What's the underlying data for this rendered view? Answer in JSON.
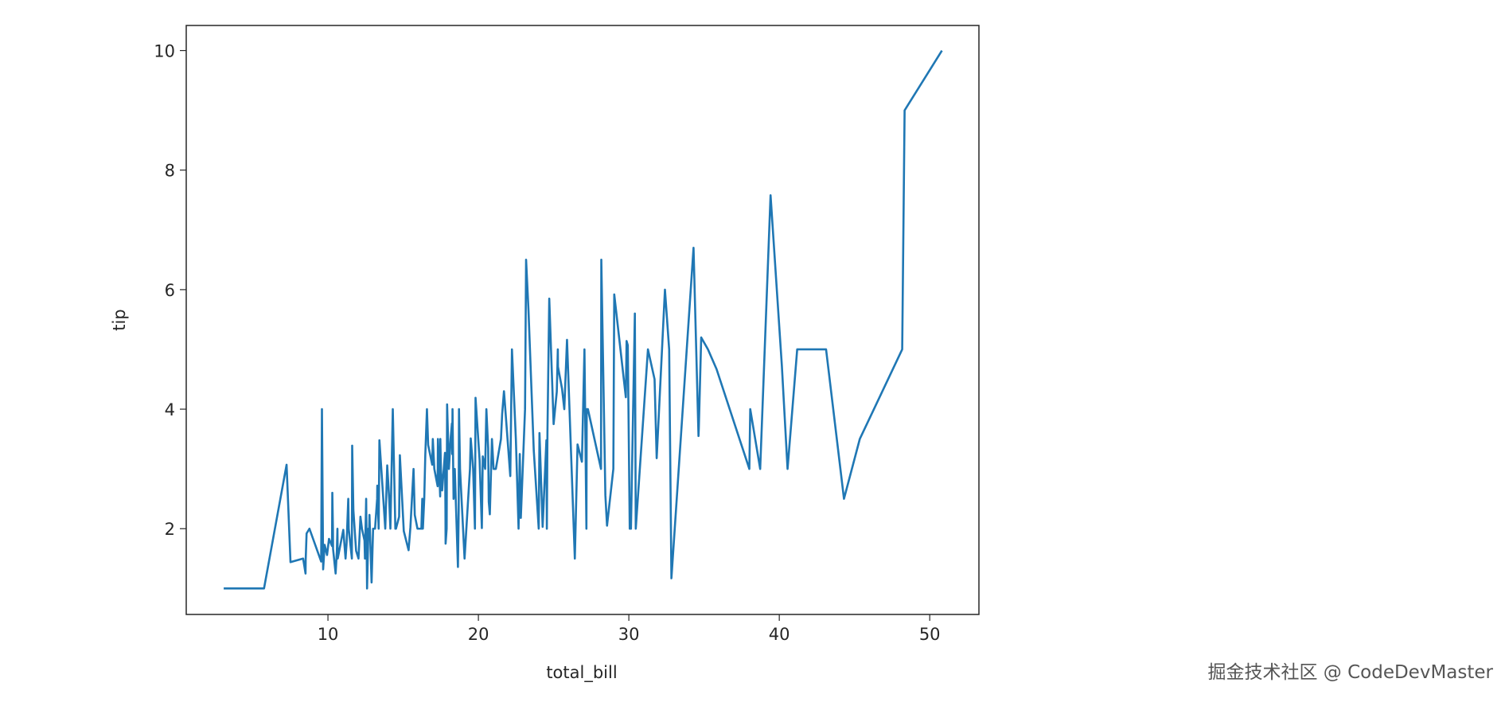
{
  "chart_data": {
    "type": "line",
    "xlabel": "total_bill",
    "ylabel": "tip",
    "x": [
      3.07,
      5.75,
      7.25,
      7.51,
      8.35,
      8.51,
      8.52,
      8.58,
      8.77,
      9.55,
      9.6,
      9.68,
      9.78,
      9.94,
      10.07,
      10.27,
      10.29,
      10.33,
      10.34,
      10.51,
      10.59,
      10.63,
      10.65,
      11.02,
      11.17,
      11.24,
      11.35,
      11.38,
      11.59,
      11.61,
      11.69,
      11.87,
      12.03,
      12.16,
      12.26,
      12.43,
      12.46,
      12.54,
      12.6,
      12.69,
      12.74,
      12.76,
      12.9,
      13.0,
      13.03,
      13.13,
      13.27,
      13.28,
      13.37,
      13.42,
      13.81,
      13.94,
      14.07,
      14.15,
      14.31,
      14.48,
      14.52,
      14.73,
      14.78,
      15.04,
      15.36,
      15.48,
      15.69,
      15.77,
      15.95,
      16.0,
      16.21,
      16.27,
      16.31,
      16.4,
      16.47,
      16.58,
      16.66,
      16.93,
      16.97,
      17.07,
      17.29,
      17.31,
      17.46,
      17.47,
      17.51,
      17.59,
      17.78,
      17.81,
      17.82,
      17.89,
      17.92,
      18.04,
      18.15,
      18.24,
      18.26,
      18.28,
      18.29,
      18.35,
      18.43,
      18.64,
      18.69,
      18.71,
      18.78,
      19.08,
      19.44,
      19.49,
      19.65,
      19.77,
      19.81,
      20.08,
      20.23,
      20.27,
      20.29,
      20.45,
      20.53,
      20.65,
      20.69,
      20.76,
      20.9,
      21.01,
      21.16,
      21.5,
      21.58,
      21.7,
      22.12,
      22.23,
      22.49,
      22.67,
      22.75,
      22.82,
      23.1,
      23.17,
      23.33,
      23.68,
      24.01,
      24.06,
      24.27,
      24.52,
      24.55,
      24.59,
      24.71,
      25.0,
      25.21,
      25.28,
      25.29,
      25.56,
      25.71,
      25.89,
      26.41,
      26.59,
      26.86,
      26.88,
      27.05,
      27.18,
      27.2,
      27.28,
      28.15,
      28.17,
      28.44,
      28.55,
      28.97,
      29.03,
      29.8,
      29.85,
      29.93,
      30.06,
      30.14,
      30.4,
      30.46,
      31.27,
      31.71,
      31.85,
      32.4,
      32.68,
      32.83,
      34.3,
      34.63,
      34.65,
      34.81,
      35.26,
      35.83,
      38.01,
      38.07,
      38.73,
      39.42,
      40.17,
      40.55,
      41.19,
      43.11,
      44.3,
      45.35,
      48.17,
      48.33,
      50.81
    ],
    "series": [
      {
        "name": "tip",
        "color": "#1f77b4",
        "values": [
          1.0,
          1.0,
          3.07,
          1.44,
          1.5,
          1.25,
          1.48,
          1.92,
          2.0,
          1.45,
          4.0,
          1.32,
          1.73,
          1.56,
          1.83,
          1.71,
          2.6,
          2.0,
          1.66,
          1.25,
          1.61,
          2.0,
          1.5,
          1.98,
          1.5,
          1.76,
          2.5,
          2.0,
          1.5,
          3.39,
          2.31,
          1.63,
          1.5,
          2.2,
          2.0,
          1.8,
          1.5,
          2.5,
          1.0,
          2.0,
          2.01,
          2.23,
          1.1,
          2.0,
          2.0,
          2.0,
          2.5,
          2.72,
          2.0,
          3.48,
          2.0,
          3.06,
          2.5,
          2.0,
          4.0,
          2.0,
          2.0,
          2.2,
          3.23,
          1.96,
          1.64,
          2.02,
          3.0,
          2.23,
          2.0,
          2.0,
          2.0,
          2.5,
          2.0,
          2.5,
          3.23,
          4.0,
          3.4,
          3.07,
          3.5,
          3.0,
          2.71,
          3.5,
          2.54,
          3.5,
          3.0,
          2.64,
          3.27,
          2.34,
          1.75,
          2.0,
          4.08,
          3.0,
          3.5,
          3.76,
          3.25,
          4.0,
          3.76,
          2.5,
          3.0,
          1.36,
          2.31,
          4.0,
          3.0,
          1.5,
          3.0,
          3.51,
          3.0,
          2.0,
          4.19,
          3.15,
          2.01,
          2.83,
          3.21,
          3.0,
          4.0,
          3.35,
          2.45,
          2.24,
          3.5,
          3.0,
          3.0,
          3.5,
          3.92,
          4.3,
          2.88,
          5.0,
          3.5,
          2.0,
          3.25,
          2.18,
          4.0,
          6.5,
          5.65,
          3.31,
          2.0,
          3.6,
          2.03,
          3.48,
          2.0,
          3.61,
          5.85,
          3.75,
          4.29,
          5.0,
          4.71,
          4.34,
          4.0,
          5.16,
          1.5,
          3.41,
          3.14,
          3.12,
          5.0,
          2.0,
          4.0,
          4.0,
          3.0,
          6.5,
          2.56,
          2.05,
          3.0,
          5.92,
          4.2,
          5.14,
          5.07,
          2.0,
          2.0,
          5.6,
          2.0,
          5.0,
          4.5,
          3.18,
          6.0,
          5.0,
          1.17,
          6.7,
          3.55,
          3.68,
          5.2,
          5.0,
          4.67,
          3.0,
          4.0,
          3.0,
          7.58,
          4.73,
          3.0,
          5.0,
          5.0,
          2.5,
          3.5,
          5.0,
          9.0,
          10.0
        ]
      }
    ],
    "xlim": [
      0.58,
      53.27
    ],
    "xticks": [
      10,
      20,
      30,
      40,
      50
    ],
    "ylim": [
      0.565,
      10.42
    ],
    "yticks": [
      2,
      4,
      6,
      8,
      10
    ]
  },
  "watermark": "掘金技术社区 @ CodeDevMaster"
}
